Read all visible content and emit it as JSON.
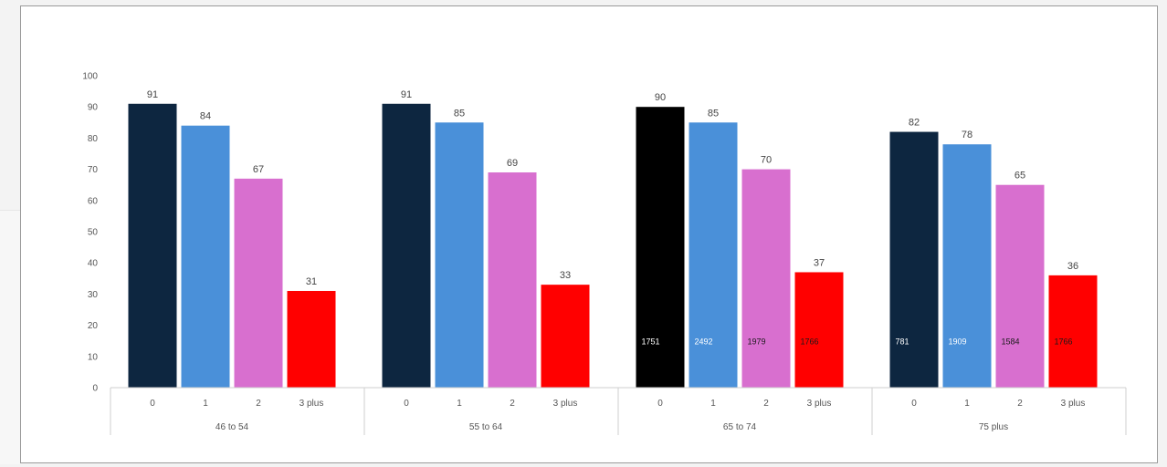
{
  "chart_data": {
    "type": "bar",
    "title": "",
    "xlabel": "",
    "ylabel": "",
    "ylim": [
      0,
      100
    ],
    "yticks": [
      0,
      10,
      20,
      30,
      40,
      50,
      60,
      70,
      80,
      90,
      100
    ],
    "grid": false,
    "groups": [
      {
        "label": "46 to 54",
        "categories": [
          "0",
          "1",
          "2",
          "3 plus"
        ],
        "values": [
          91,
          84,
          67,
          31
        ],
        "inner_labels": [
          "",
          "",
          "",
          ""
        ]
      },
      {
        "label": "55 to 64",
        "categories": [
          "0",
          "1",
          "2",
          "3 plus"
        ],
        "values": [
          91,
          85,
          69,
          33
        ],
        "inner_labels": [
          "",
          "",
          "",
          ""
        ]
      },
      {
        "label": "65 to 74",
        "categories": [
          "0",
          "1",
          "2",
          "3 plus"
        ],
        "values": [
          90,
          85,
          70,
          37
        ],
        "inner_labels": [
          "1751",
          "2492",
          "1979",
          "1766"
        ],
        "colors": [
          "#000000",
          "#4a90d9",
          "#d86fcf",
          "#ff0000"
        ]
      },
      {
        "label": "75 plus",
        "categories": [
          "0",
          "1",
          "2",
          "3 plus"
        ],
        "values": [
          82,
          78,
          65,
          36
        ],
        "inner_labels": [
          "781",
          "1909",
          "1584",
          "1766"
        ]
      }
    ],
    "colors": [
      "#0d2640",
      "#4a90d9",
      "#d86fcf",
      "#ff0000"
    ],
    "inner_label_colors": [
      "#ffffff",
      "#ffffff",
      "#1a1a1a",
      "#1a1a1a"
    ]
  }
}
